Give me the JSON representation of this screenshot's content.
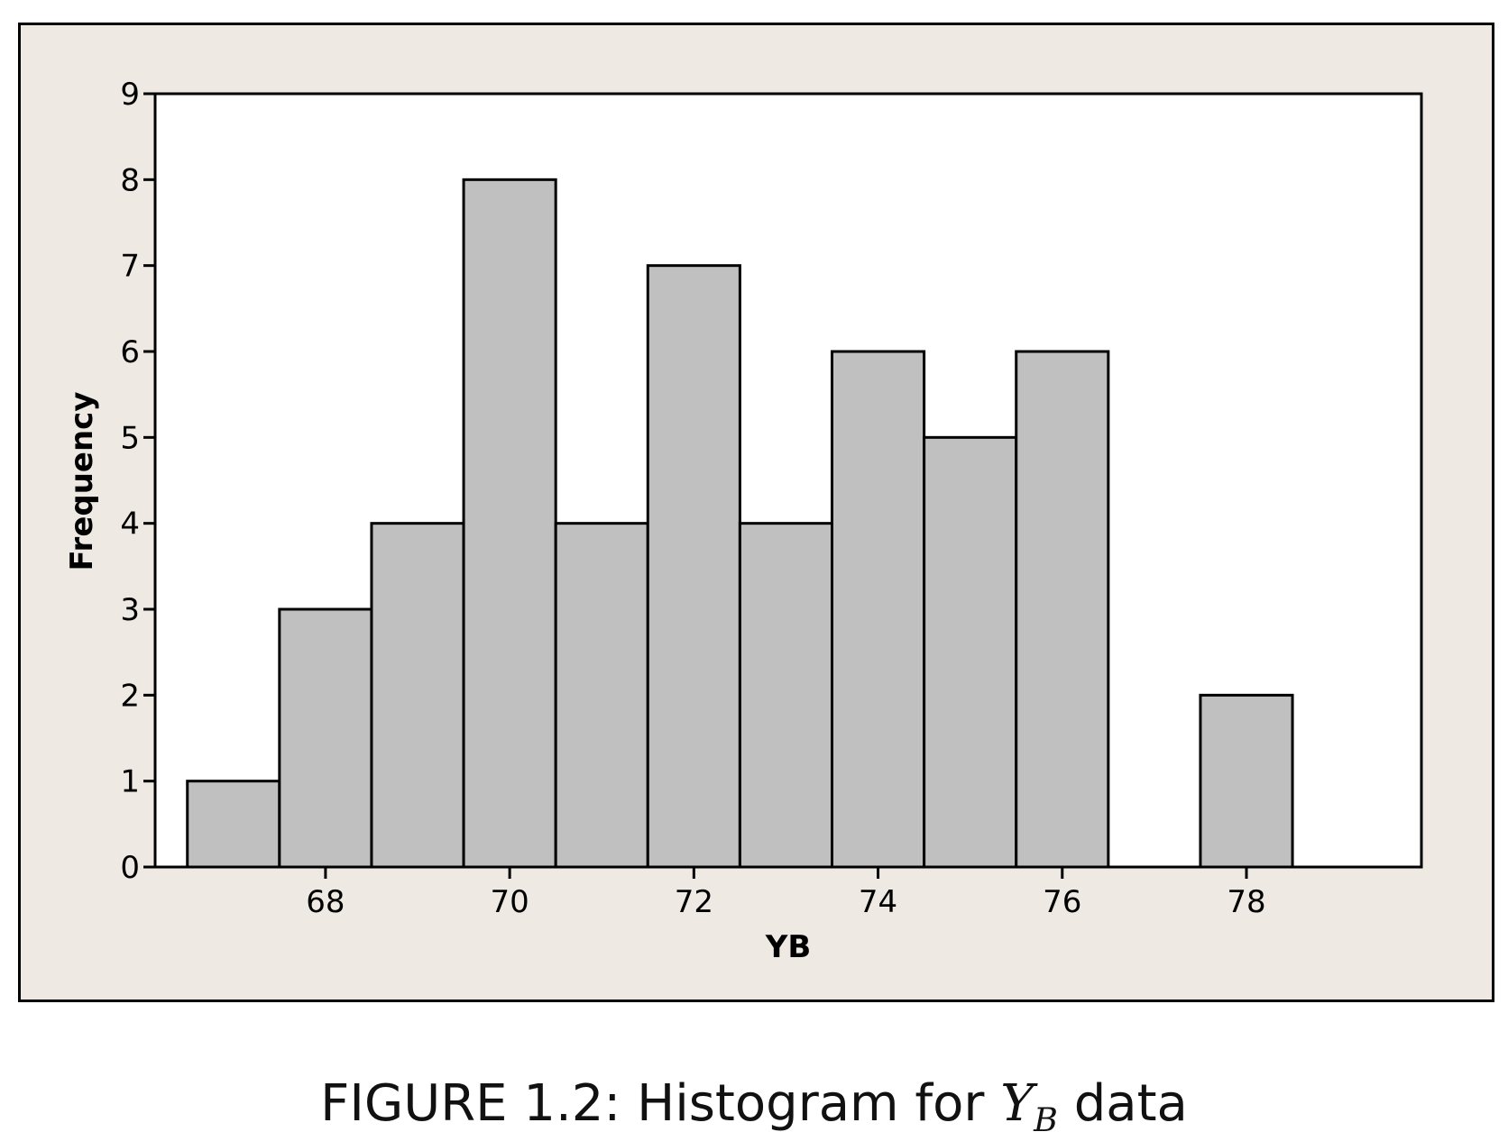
{
  "caption": {
    "label": "FIGURE 1.2:",
    "text_before": "Histogram for",
    "math_symbol": "Y",
    "math_subscript": "B",
    "text_after": "data"
  },
  "colors": {
    "panel_background": "#eeeae3",
    "plot_background": "#ffffff",
    "bar_fill": "#c0c0c0",
    "bar_stroke": "#000000"
  },
  "chart_data": {
    "type": "bar",
    "xlabel": "YB",
    "ylabel": "Frequency",
    "categories": [
      67,
      68,
      69,
      70,
      71,
      72,
      73,
      74,
      75,
      76,
      77,
      78
    ],
    "values": [
      1,
      3,
      4,
      8,
      4,
      7,
      4,
      6,
      5,
      6,
      0,
      2
    ],
    "bin_width": 1,
    "xlim": [
      66.15,
      79.9
    ],
    "ylim": [
      0,
      9
    ],
    "xticks": [
      68,
      70,
      72,
      74,
      76,
      78
    ],
    "yticks": [
      0,
      1,
      2,
      3,
      4,
      5,
      6,
      7,
      8,
      9
    ],
    "grid": false,
    "legend": "none"
  }
}
